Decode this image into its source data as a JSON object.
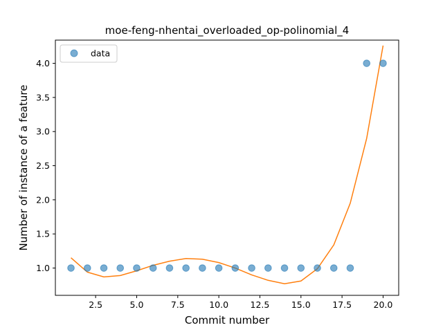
{
  "chart_data": {
    "type": "scatter",
    "title": "moe-feng-nhentai_overloaded_op-polinomial_4",
    "xlabel": "Commit number",
    "ylabel": "Number of instance of a feature",
    "xlim": [
      0.05,
      20.95
    ],
    "ylim": [
      0.6,
      4.34
    ],
    "xticks": [
      2.5,
      5.0,
      7.5,
      10.0,
      12.5,
      15.0,
      17.5,
      20.0
    ],
    "xtick_labels": [
      "2.5",
      "5.0",
      "7.5",
      "10.0",
      "12.5",
      "15.0",
      "17.5",
      "20.0"
    ],
    "yticks": [
      1.0,
      1.5,
      2.0,
      2.5,
      3.0,
      3.5,
      4.0
    ],
    "ytick_labels": [
      "1.0",
      "1.5",
      "2.0",
      "2.5",
      "3.0",
      "3.5",
      "4.0"
    ],
    "grid": false,
    "legend": {
      "placement": "top-left",
      "entries": [
        "data"
      ]
    },
    "series": [
      {
        "name": "data",
        "kind": "scatter",
        "color": "#1f77b4",
        "x": [
          1,
          2,
          3,
          4,
          5,
          6,
          7,
          8,
          9,
          10,
          11,
          12,
          13,
          14,
          15,
          16,
          17,
          18,
          19,
          20
        ],
        "y": [
          1,
          1,
          1,
          1,
          1,
          1,
          1,
          1,
          1,
          1,
          1,
          1,
          1,
          1,
          1,
          1,
          1,
          1,
          4,
          4
        ]
      },
      {
        "kind": "line",
        "color": "#ff7f0e",
        "x": [
          1,
          2,
          3,
          4,
          5,
          6,
          7,
          8,
          9,
          10,
          11,
          12,
          13,
          14,
          15,
          16,
          17,
          18,
          19,
          20
        ],
        "y": [
          1.15,
          0.94,
          0.87,
          0.89,
          0.96,
          1.04,
          1.1,
          1.14,
          1.13,
          1.08,
          1.0,
          0.9,
          0.82,
          0.77,
          0.81,
          0.99,
          1.34,
          1.95,
          2.9,
          4.26
        ]
      }
    ]
  }
}
